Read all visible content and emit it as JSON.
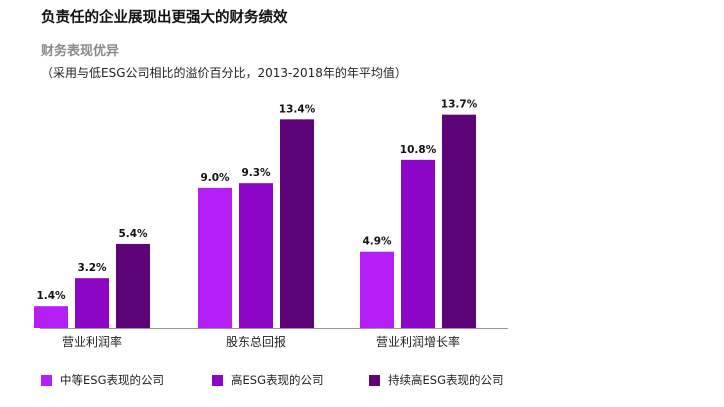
{
  "title": "负责任的企业展现出更强大的财务绩效",
  "subtitle": "财务表现优异",
  "note": "（采用与低ESG公司相比的溢价百分比，2013-2018年的年平均值）",
  "colors": {
    "series1": "#b41ff5",
    "series2": "#8b07c5",
    "series3": "#5d0479"
  },
  "chart_data": {
    "type": "bar",
    "title": "负责任的企业展现出更强大的财务绩效",
    "subtitle": "财务表现优异",
    "categories": [
      "营业利润率",
      "股东总回报",
      "营业利润增长率"
    ],
    "series": [
      {
        "name": "中等ESG表现的公司",
        "values": [
          1.4,
          9.0,
          4.9
        ],
        "labels": [
          "1.4%",
          "9.0%",
          "4.9%"
        ]
      },
      {
        "name": "高ESG表现的公司",
        "values": [
          3.2,
          9.3,
          10.8
        ],
        "labels": [
          "3.2%",
          "9.3%",
          "10.8%"
        ]
      },
      {
        "name": "持续高ESG表现的公司",
        "values": [
          5.4,
          13.4,
          13.7
        ],
        "labels": [
          "5.4%",
          "13.4%",
          "13.7%"
        ]
      }
    ],
    "xlabel": "",
    "ylabel": "",
    "ylim": [
      0,
      14
    ],
    "grid": false,
    "legend_position": "bottom"
  }
}
